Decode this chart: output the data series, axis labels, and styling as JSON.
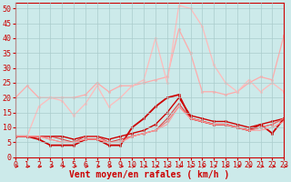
{
  "background_color": "#cceaea",
  "grid_color": "#aacccc",
  "xlabel": "Vent moyen/en rafales ( km/h )",
  "xlabel_color": "#cc0000",
  "xlabel_fontsize": 7,
  "xtick_color": "#cc0000",
  "ytick_color": "#cc0000",
  "tick_fontsize": 6,
  "x": [
    0,
    1,
    2,
    3,
    4,
    5,
    6,
    7,
    8,
    9,
    10,
    11,
    12,
    13,
    14,
    15,
    16,
    17,
    18,
    19,
    20,
    21,
    22,
    23
  ],
  "series": [
    {
      "y": [
        20,
        24,
        20,
        20,
        20,
        20,
        21,
        25,
        22,
        24,
        24,
        25,
        26,
        27,
        43,
        35,
        22,
        22,
        21,
        22,
        25,
        27,
        26,
        41
      ],
      "color": "#ffaaaa",
      "lw": 0.9,
      "marker": "o",
      "ms": 1.8
    },
    {
      "y": [
        7,
        7,
        17,
        20,
        19,
        14,
        18,
        24,
        17,
        20,
        24,
        26,
        40,
        25,
        51,
        50,
        44,
        31,
        25,
        22,
        26,
        22,
        25,
        22
      ],
      "color": "#ffbbbb",
      "lw": 0.9,
      "marker": "o",
      "ms": 1.8
    },
    {
      "y": [
        7,
        7,
        6,
        4,
        4,
        4,
        6,
        6,
        4,
        4,
        10,
        13,
        17,
        20,
        21,
        13,
        12,
        11,
        11,
        10,
        9,
        11,
        8,
        13
      ],
      "color": "#cc0000",
      "lw": 1.3,
      "marker": "o",
      "ms": 1.8
    },
    {
      "y": [
        7,
        7,
        7,
        7,
        7,
        6,
        7,
        7,
        6,
        7,
        8,
        9,
        11,
        15,
        20,
        14,
        13,
        12,
        12,
        11,
        10,
        11,
        12,
        13
      ],
      "color": "#cc0000",
      "lw": 1.0,
      "marker": "o",
      "ms": 1.8
    },
    {
      "y": [
        7,
        7,
        7,
        7,
        6,
        5,
        7,
        7,
        5,
        6,
        7,
        8,
        9,
        13,
        18,
        13,
        12,
        11,
        11,
        10,
        9,
        10,
        11,
        13
      ],
      "color": "#dd4444",
      "lw": 0.8,
      "marker": "o",
      "ms": 1.5
    },
    {
      "y": [
        7,
        7,
        7,
        6,
        5,
        5,
        6,
        6,
        5,
        5,
        7,
        8,
        9,
        12,
        17,
        13,
        12,
        11,
        11,
        10,
        9,
        10,
        11,
        13
      ],
      "color": "#ee7777",
      "lw": 0.8,
      "marker": "o",
      "ms": 1.5
    },
    {
      "y": [
        7,
        7,
        7,
        6,
        5,
        5,
        6,
        6,
        5,
        5,
        7,
        8,
        9,
        11,
        17,
        13,
        12,
        11,
        11,
        10,
        9,
        9,
        10,
        12
      ],
      "color": "#ff9999",
      "lw": 0.7,
      "marker": null,
      "ms": 0
    }
  ],
  "ylim": [
    0,
    52
  ],
  "yticks": [
    0,
    5,
    10,
    15,
    20,
    25,
    30,
    35,
    40,
    45,
    50
  ],
  "arrow_color": "#cc0000"
}
